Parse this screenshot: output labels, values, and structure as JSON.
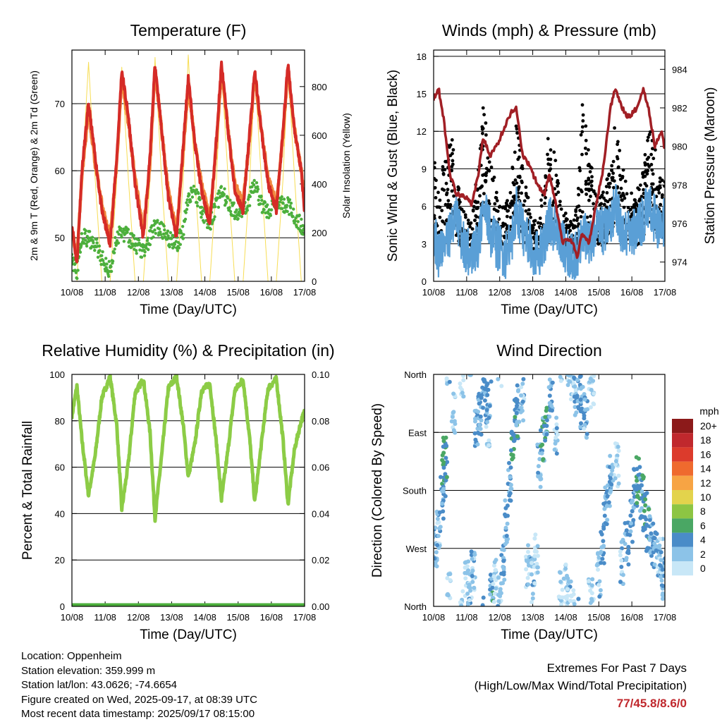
{
  "x_ticks": [
    "10/08",
    "11/08",
    "12/08",
    "13/08",
    "14/08",
    "15/08",
    "16/08",
    "17/08"
  ],
  "x_title": "Time (Day/UTC)",
  "panels": {
    "temperature": {
      "title": "Temperature (F)",
      "ylabel_left": "2m & 9m T (Red, Orange) & 2m Td (Green)",
      "ylabel_right": "Solar Insolation (Yellow)",
      "left_ticks": [
        "50",
        "60",
        "70"
      ],
      "right_ticks": [
        "0",
        "200",
        "400",
        "600",
        "800"
      ]
    },
    "winds": {
      "title": "Winds (mph) & Pressure (mb)",
      "ylabel_left": "Sonic Wind & Gust (Blue, Black)",
      "ylabel_right": "Station Pressure (Maroon)",
      "left_ticks": [
        "0",
        "3",
        "6",
        "9",
        "12",
        "15",
        "18"
      ],
      "right_ticks": [
        "974",
        "976",
        "978",
        "980",
        "982",
        "984"
      ]
    },
    "humidity": {
      "title": "Relative Humidity (%) & Precipitation (in)",
      "ylabel_left": "Percent & Total Rainfall",
      "left_ticks": [
        "0",
        "20",
        "40",
        "60",
        "80",
        "100"
      ],
      "right_ticks": [
        "0.00",
        "0.02",
        "0.04",
        "0.06",
        "0.08",
        "0.10"
      ]
    },
    "direction": {
      "title": "Wind Direction",
      "ylabel_left": "Direction (Colored By Speed)",
      "left_ticks": [
        "North",
        "East",
        "South",
        "West",
        "North"
      ],
      "legend_title": "mph",
      "legend_labels": [
        "20+",
        "18",
        "16",
        "14",
        "12",
        "10",
        "8",
        "6",
        "4",
        "2",
        "0"
      ],
      "legend_colors": [
        "#8c1a1a",
        "#c0282d",
        "#dc3b2c",
        "#ef6a2e",
        "#f7a444",
        "#e3d34c",
        "#8dc543",
        "#4aa764",
        "#4a8cc8",
        "#8cc3e8",
        "#c8e7f7"
      ]
    }
  },
  "chart_data": [
    {
      "type": "line",
      "title": "Temperature (F)",
      "xlabel": "Time (Day/UTC)",
      "ylabel": "2m & 9m T (Red, Orange) & 2m Td (Green)",
      "ylabel_right": "Solar Insolation (Yellow)",
      "x": [
        0,
        0.15,
        0.3,
        0.5,
        0.7,
        0.9,
        1.15,
        1.35,
        1.5,
        1.7,
        1.9,
        2.15,
        2.35,
        2.5,
        2.7,
        2.9,
        3.15,
        3.35,
        3.5,
        3.7,
        3.9,
        4.15,
        4.35,
        4.5,
        4.7,
        4.9,
        5.15,
        5.35,
        5.5,
        5.7,
        5.9,
        6.15,
        6.35,
        6.5,
        6.7,
        6.9,
        7.0
      ],
      "ylim": [
        43.5,
        78
      ],
      "ylim_right": [
        0,
        950
      ],
      "series": [
        {
          "name": "2m T (Red)",
          "values": [
            52,
            46,
            60,
            70,
            62,
            54,
            49,
            62,
            75,
            68,
            58,
            50,
            62,
            76,
            66,
            56,
            50,
            64,
            74,
            64,
            57,
            52,
            65,
            76,
            66,
            57,
            54,
            66,
            75,
            66,
            58,
            54,
            66,
            76,
            66,
            60,
            54
          ]
        },
        {
          "name": "9m T (Orange)",
          "values": [
            51,
            47,
            59,
            69,
            61,
            55,
            50,
            61,
            74,
            67,
            59,
            51,
            61,
            75,
            66,
            57,
            51,
            63,
            73,
            64,
            58,
            53,
            64,
            75,
            66,
            58,
            55,
            65,
            74,
            66,
            59,
            55,
            65,
            75,
            66,
            60,
            55
          ]
        },
        {
          "name": "2m Td (Green)",
          "values": [
            47,
            45,
            50,
            50,
            49,
            47,
            45,
            50,
            51,
            50,
            49,
            48,
            50,
            52,
            51,
            50,
            49,
            51,
            56,
            57,
            54,
            52,
            55,
            57,
            55,
            54,
            54,
            56,
            58,
            55,
            54,
            55,
            55,
            55,
            53,
            52,
            51
          ]
        },
        {
          "name": "Solar Insolation (Yellow)",
          "values": [
            0,
            0,
            420,
            900,
            420,
            0,
            0,
            420,
            880,
            420,
            0,
            0,
            420,
            920,
            420,
            0,
            0,
            420,
            930,
            420,
            0,
            0,
            420,
            870,
            420,
            0,
            0,
            420,
            860,
            420,
            0,
            0,
            420,
            880,
            420,
            0,
            0
          ]
        }
      ]
    },
    {
      "type": "line",
      "title": "Winds (mph) & Pressure (mb)",
      "xlabel": "Time (Day/UTC)",
      "ylabel": "Sonic Wind & Gust (Blue, Black)",
      "ylabel_right": "Station Pressure (Maroon)",
      "x": [
        0,
        0.15,
        0.3,
        0.5,
        0.7,
        0.9,
        1.15,
        1.35,
        1.5,
        1.7,
        1.9,
        2.15,
        2.35,
        2.5,
        2.7,
        2.9,
        3.15,
        3.35,
        3.5,
        3.7,
        3.9,
        4.15,
        4.35,
        4.5,
        4.7,
        4.9,
        5.15,
        5.35,
        5.5,
        5.7,
        5.9,
        6.15,
        6.35,
        6.5,
        6.7,
        6.9,
        7.0
      ],
      "ylim": [
        0,
        18.5
      ],
      "ylim_right": [
        973,
        985
      ],
      "series": [
        {
          "name": "Sonic Wind (Blue)",
          "values": [
            4,
            2,
            3,
            4,
            5,
            3,
            2,
            3,
            6,
            4,
            3,
            2,
            3,
            6,
            4,
            3,
            2,
            3,
            5,
            4,
            3,
            2,
            2,
            4,
            3,
            4,
            4,
            5,
            6,
            4,
            4,
            4,
            5,
            6,
            5,
            4,
            5
          ]
        },
        {
          "name": "Gust (Black)",
          "values": [
            9,
            6,
            8,
            11,
            7,
            5,
            4,
            8,
            12,
            9,
            6,
            5,
            7,
            11,
            8,
            5,
            4,
            7,
            11,
            8,
            5,
            4,
            5,
            12,
            9,
            6,
            6,
            8,
            11,
            8,
            6,
            6,
            8,
            11,
            9,
            7,
            7
          ]
        },
        {
          "name": "Station Pressure (Maroon)",
          "values": [
            982.5,
            983,
            981.5,
            978.5,
            977.5,
            977.5,
            977,
            978.5,
            980.5,
            979.5,
            980,
            981,
            981.8,
            982,
            979.5,
            979,
            978,
            977.5,
            978.5,
            977,
            975,
            975.2,
            974.3,
            975.5,
            975,
            976.8,
            979,
            982,
            983,
            982,
            981.5,
            982,
            983,
            982,
            980,
            980.8,
            979.8
          ]
        }
      ]
    },
    {
      "type": "line",
      "title": "Relative Humidity (%) & Precipitation (in)",
      "xlabel": "Time (Day/UTC)",
      "ylabel": "Percent & Total Rainfall",
      "x": [
        0,
        0.15,
        0.3,
        0.5,
        0.7,
        0.9,
        1.15,
        1.35,
        1.5,
        1.7,
        1.9,
        2.15,
        2.35,
        2.5,
        2.7,
        2.9,
        3.15,
        3.35,
        3.5,
        3.7,
        3.9,
        4.15,
        4.35,
        4.5,
        4.7,
        4.9,
        5.15,
        5.35,
        5.5,
        5.7,
        5.9,
        6.15,
        6.35,
        6.5,
        6.7,
        6.9,
        7.0
      ],
      "ylim": [
        0,
        100
      ],
      "ylim_right": [
        0,
        0.1
      ],
      "series": [
        {
          "name": "Relative Humidity",
          "values": [
            82,
            95,
            72,
            48,
            65,
            90,
            99,
            78,
            42,
            62,
            92,
            98,
            75,
            38,
            65,
            94,
            99,
            78,
            56,
            70,
            93,
            96,
            70,
            46,
            68,
            93,
            98,
            72,
            45,
            70,
            94,
            98,
            72,
            44,
            68,
            80,
            84
          ]
        },
        {
          "name": "Total Rainfall",
          "values": [
            0,
            0,
            0,
            0,
            0,
            0,
            0,
            0,
            0,
            0,
            0,
            0,
            0,
            0,
            0,
            0,
            0,
            0,
            0,
            0,
            0,
            0,
            0,
            0,
            0,
            0,
            0,
            0,
            0,
            0,
            0,
            0,
            0,
            0,
            0,
            0,
            0
          ]
        }
      ]
    },
    {
      "type": "scatter",
      "title": "Wind Direction",
      "xlabel": "Time (Day/UTC)",
      "ylabel": "Direction (Colored By Speed)",
      "y_categories": [
        "North",
        "East",
        "South",
        "West",
        "North"
      ],
      "ylim": [
        0,
        360
      ],
      "points": [
        {
          "x": 0.05,
          "y": 90,
          "s": 4
        },
        {
          "x": 0.15,
          "y": 120,
          "s": 3
        },
        {
          "x": 0.25,
          "y": 170,
          "s": 4
        },
        {
          "x": 0.3,
          "y": 200,
          "s": 5
        },
        {
          "x": 0.35,
          "y": 230,
          "s": 6
        },
        {
          "x": 0.45,
          "y": 20,
          "s": 3
        },
        {
          "x": 0.6,
          "y": 300,
          "s": 2
        },
        {
          "x": 0.85,
          "y": 350,
          "s": 2
        },
        {
          "x": 1.0,
          "y": 40,
          "s": 2
        },
        {
          "x": 1.1,
          "y": 25,
          "s": 3
        },
        {
          "x": 1.2,
          "y": 60,
          "s": 3
        },
        {
          "x": 1.3,
          "y": 280,
          "s": 4
        },
        {
          "x": 1.4,
          "y": 300,
          "s": 5
        },
        {
          "x": 1.5,
          "y": 340,
          "s": 4
        },
        {
          "x": 1.6,
          "y": 320,
          "s": 4
        },
        {
          "x": 1.65,
          "y": 280,
          "s": 3
        },
        {
          "x": 1.75,
          "y": 20,
          "s": 5
        },
        {
          "x": 1.85,
          "y": 40,
          "s": 2
        },
        {
          "x": 2.0,
          "y": 15,
          "s": 3
        },
        {
          "x": 2.1,
          "y": 60,
          "s": 4
        },
        {
          "x": 2.2,
          "y": 130,
          "s": 4
        },
        {
          "x": 2.3,
          "y": 190,
          "s": 4
        },
        {
          "x": 2.4,
          "y": 260,
          "s": 6
        },
        {
          "x": 2.5,
          "y": 290,
          "s": 5
        },
        {
          "x": 2.55,
          "y": 310,
          "s": 4
        },
        {
          "x": 2.7,
          "y": 320,
          "s": 3
        },
        {
          "x": 2.85,
          "y": 60,
          "s": 3
        },
        {
          "x": 3.0,
          "y": 40,
          "s": 3
        },
        {
          "x": 3.1,
          "y": 80,
          "s": 2
        },
        {
          "x": 3.2,
          "y": 220,
          "s": 3
        },
        {
          "x": 3.3,
          "y": 260,
          "s": 5
        },
        {
          "x": 3.4,
          "y": 280,
          "s": 5
        },
        {
          "x": 3.55,
          "y": 320,
          "s": 4
        },
        {
          "x": 3.7,
          "y": 270,
          "s": 3
        },
        {
          "x": 3.85,
          "y": 20,
          "s": 2
        },
        {
          "x": 4.0,
          "y": 30,
          "s": 2
        },
        {
          "x": 4.1,
          "y": 15,
          "s": 3
        },
        {
          "x": 4.2,
          "y": 350,
          "s": 2
        },
        {
          "x": 4.3,
          "y": 330,
          "s": 3
        },
        {
          "x": 4.4,
          "y": 340,
          "s": 4
        },
        {
          "x": 4.5,
          "y": 310,
          "s": 4
        },
        {
          "x": 4.6,
          "y": 290,
          "s": 3
        },
        {
          "x": 4.75,
          "y": 10,
          "s": 2
        },
        {
          "x": 4.8,
          "y": 340,
          "s": 2
        },
        {
          "x": 5.0,
          "y": 50,
          "s": 3
        },
        {
          "x": 5.1,
          "y": 100,
          "s": 4
        },
        {
          "x": 5.2,
          "y": 160,
          "s": 4
        },
        {
          "x": 5.3,
          "y": 190,
          "s": 4
        },
        {
          "x": 5.4,
          "y": 210,
          "s": 3
        },
        {
          "x": 5.55,
          "y": 220,
          "s": 2
        },
        {
          "x": 5.7,
          "y": 70,
          "s": 3
        },
        {
          "x": 5.85,
          "y": 100,
          "s": 4
        },
        {
          "x": 6.0,
          "y": 130,
          "s": 4
        },
        {
          "x": 6.1,
          "y": 180,
          "s": 5
        },
        {
          "x": 6.2,
          "y": 200,
          "s": 6
        },
        {
          "x": 6.3,
          "y": 170,
          "s": 5
        },
        {
          "x": 6.4,
          "y": 150,
          "s": 6
        },
        {
          "x": 6.5,
          "y": 120,
          "s": 5
        },
        {
          "x": 6.6,
          "y": 100,
          "s": 4
        },
        {
          "x": 6.7,
          "y": 90,
          "s": 4
        },
        {
          "x": 6.8,
          "y": 80,
          "s": 3
        },
        {
          "x": 6.9,
          "y": 70,
          "s": 3
        },
        {
          "x": 6.95,
          "y": 40,
          "s": 4
        }
      ]
    }
  ],
  "info": {
    "location": "Location: Oppenheim",
    "elevation": "Station elevation: 359.999 m",
    "latlon": "Station lat/lon: 43.0626; -74.6654",
    "created": "Figure created on Wed, 2025-09-17, at 08:39 UTC",
    "recent": "Most recent data timestamp: 2025/09/17 08:15:00"
  },
  "extremes": {
    "line1": "Extremes For Past 7 Days",
    "line2": "(High/Low/Max Wind/Total Precipitation)",
    "value": "77/45.8/8.6/0",
    "value_color": "#c0282d"
  },
  "colors": {
    "red": "#d52b27",
    "orange": "#f07a28",
    "green": "#4caf3c",
    "yellow": "#f7dd55",
    "blue": "#5a9fd6",
    "black": "#000000",
    "maroon": "#a11f25",
    "rh_green": "#8ccc46"
  }
}
